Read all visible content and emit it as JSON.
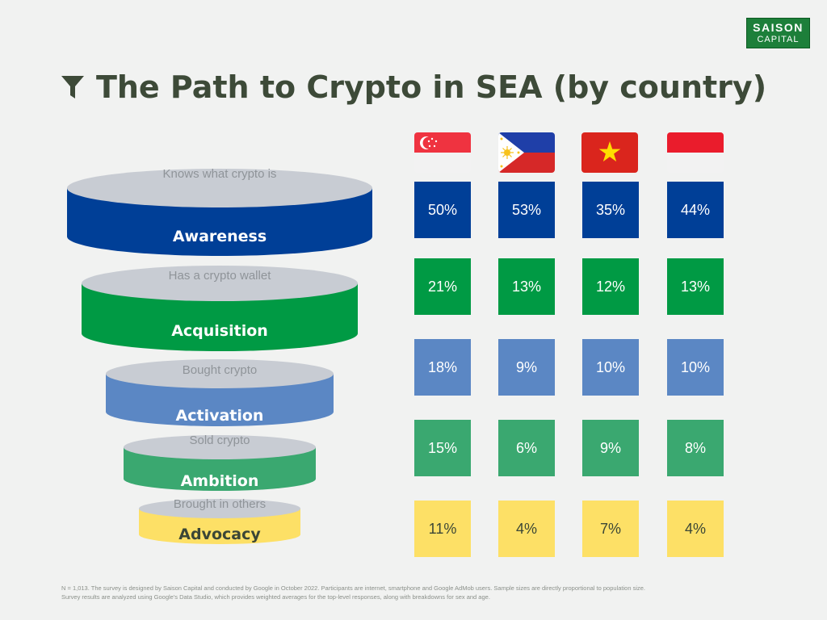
{
  "logo": {
    "line1": "SAISON",
    "line2": "CAPITAL",
    "bg": "#1d7f3a"
  },
  "title": "The Path to Crypto in SEA (by country)",
  "title_icon": "funnel-icon",
  "flags": [
    "singapore-flag",
    "philippines-flag",
    "vietnam-flag",
    "indonesia-flag"
  ],
  "chart_data": {
    "type": "table",
    "columns": [
      "Singapore",
      "Philippines",
      "Vietnam",
      "Indonesia"
    ],
    "stages": [
      {
        "name": "Awareness",
        "description": "Knows what crypto is",
        "color": "#003f97",
        "values": [
          "50%",
          "53%",
          "35%",
          "44%"
        ]
      },
      {
        "name": "Acquisition",
        "description": "Has a crypto wallet",
        "color": "#009a44",
        "values": [
          "21%",
          "13%",
          "12%",
          "13%"
        ]
      },
      {
        "name": "Activation",
        "description": "Bought crypto",
        "color": "#5b87c4",
        "values": [
          "18%",
          "9%",
          "10%",
          "10%"
        ]
      },
      {
        "name": "Ambition",
        "description": "Sold crypto",
        "color": "#3aa870",
        "values": [
          "15%",
          "6%",
          "9%",
          "8%"
        ]
      },
      {
        "name": "Advocacy",
        "description": "Brought in others",
        "color": "#fde066",
        "values": [
          "11%",
          "4%",
          "7%",
          "4%"
        ]
      }
    ]
  },
  "footnote": {
    "line1": "N = 1,013. The survey is designed by Saison Capital and conducted by Google in October 2022. Participants are internet, smartphone and Google AdMob users. Sample sizes are directly proportional to population size.",
    "line2": "Survey results are analyzed using Google's Data Studio, which provides weighted averages for the top-level responses, along with breakdowns for sex and age."
  }
}
